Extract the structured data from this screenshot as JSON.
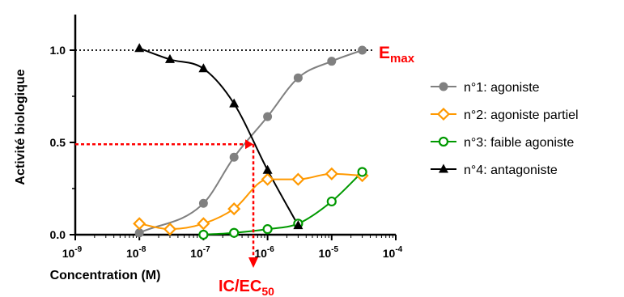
{
  "chart_data": {
    "type": "scatter",
    "xscale": "log",
    "xlim": [
      1e-09,
      0.0001
    ],
    "ylim": [
      0,
      1.0
    ],
    "xlabel": "Concentration (M)",
    "ylabel": "Activité biologique",
    "x_ticks": [
      {
        "exp": "-9",
        "value": 1e-09
      },
      {
        "exp": "-8",
        "value": 1e-08
      },
      {
        "exp": "-7",
        "value": 1e-07
      },
      {
        "exp": "-6",
        "value": 1e-06
      },
      {
        "exp": "-5",
        "value": 1e-05
      },
      {
        "exp": "-4",
        "value": 0.0001
      }
    ],
    "x_tick_base": "10",
    "y_ticks": [
      {
        "label": "0.0",
        "value": 0.0
      },
      {
        "label": "0.5",
        "value": 0.5
      },
      {
        "label": "1.0",
        "value": 1.0
      }
    ],
    "legend_position": "right",
    "series": [
      {
        "name": "n°1: agoniste",
        "color": "#808080",
        "marker": "circle-filled",
        "x": [
          1e-08,
          1e-07,
          3e-07,
          1e-06,
          3e-06,
          1e-05,
          3e-05
        ],
        "y": [
          0.01,
          0.17,
          0.42,
          0.64,
          0.85,
          0.94,
          1.0
        ]
      },
      {
        "name": "n°2: agoniste partiel",
        "color": "#ff9900",
        "marker": "diamond-open",
        "x": [
          1e-08,
          3e-08,
          1e-07,
          3e-07,
          1e-06,
          3e-06,
          1e-05,
          3e-05
        ],
        "y": [
          0.06,
          0.03,
          0.06,
          0.14,
          0.3,
          0.3,
          0.33,
          0.32
        ]
      },
      {
        "name": "n°3: faible agoniste",
        "color": "#009900",
        "marker": "circle-open",
        "x": [
          1e-07,
          3e-07,
          1e-06,
          3e-06,
          1e-05,
          3e-05
        ],
        "y": [
          0.0,
          0.01,
          0.03,
          0.06,
          0.18,
          0.34
        ]
      },
      {
        "name": "n°4: antagoniste",
        "color": "#000000",
        "marker": "triangle-filled",
        "x": [
          1e-08,
          3e-08,
          1e-07,
          3e-07,
          1e-06,
          3e-06
        ],
        "y": [
          1.01,
          0.95,
          0.9,
          0.71,
          0.35,
          0.05
        ]
      }
    ],
    "reference_line": {
      "y": 1.0,
      "style": "dotted"
    },
    "annotations": {
      "emax_main": "E",
      "emax_sub": "max",
      "ic50_main": "IC/EC",
      "ic50_sub": "50",
      "ic50_point": {
        "x": 6e-07,
        "y": 0.49
      },
      "color": "#ff0000"
    }
  }
}
